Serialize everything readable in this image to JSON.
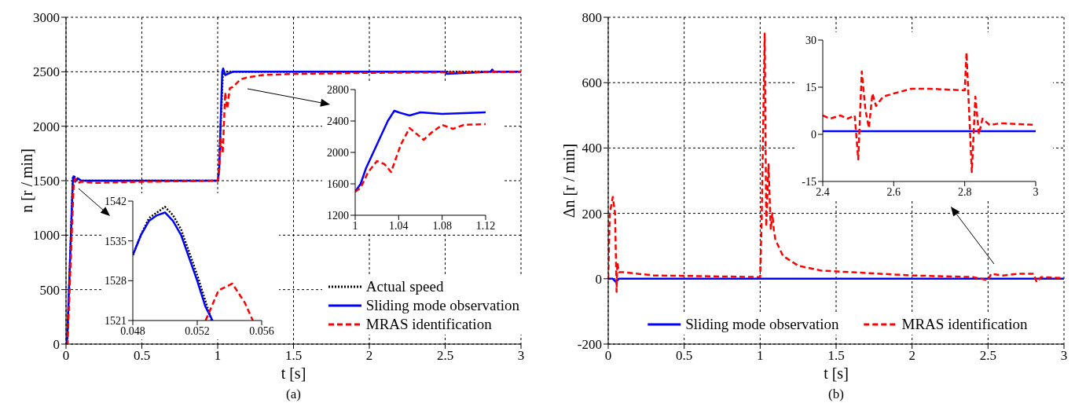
{
  "chart_data": [
    {
      "type": "line",
      "title": "(a)",
      "xlabel": "t [s]",
      "ylabel": "n [r / min]",
      "xlim": [
        0,
        3
      ],
      "ylim": [
        0,
        3000
      ],
      "xticks": [
        0,
        0.5,
        1,
        1.5,
        2,
        2.5,
        3
      ],
      "yticks": [
        0,
        500,
        1000,
        1500,
        2000,
        2500,
        3000
      ],
      "grid": true,
      "legend": "bottom right",
      "series": [
        {
          "name": "Actual speed",
          "color": "#000000",
          "line_style": "dotted",
          "x": [
            0,
            0.008,
            0.045,
            0.05,
            0.1,
            1,
            1.004,
            1.035,
            1.04,
            3
          ],
          "values": [
            0,
            0,
            1530,
            1540,
            1500,
            1500,
            1500,
            2500,
            2500,
            2500
          ]
        },
        {
          "name": "Sliding mode observation",
          "color": "#0000ff",
          "line_style": "solid",
          "x": [
            0,
            0.008,
            0.045,
            0.05,
            0.06,
            0.08,
            0.1,
            1,
            1.01,
            1.03,
            1.036,
            1.05,
            1.1,
            2.5,
            2.51,
            2.8,
            2.81,
            2.82,
            3
          ],
          "values": [
            0,
            50,
            1500,
            1540,
            1490,
            1520,
            1500,
            1500,
            1600,
            2500,
            2530,
            2470,
            2500,
            2500,
            2480,
            2500,
            2520,
            2500,
            2500
          ]
        },
        {
          "name": "MRAS identification",
          "color": "#ff0000",
          "line_style": "dashed",
          "x": [
            0,
            0.01,
            0.05,
            0.06,
            0.08,
            0.1,
            0.2,
            0.5,
            1,
            1.01,
            1.02,
            1.033,
            1.05,
            1.063,
            1.08,
            1.1,
            1.15,
            1.2,
            1.3,
            1.5,
            2,
            2.5,
            3
          ],
          "values": [
            0,
            0,
            1450,
            1520,
            1480,
            1490,
            1480,
            1490,
            1500,
            1600,
            1890,
            1750,
            2310,
            2160,
            2350,
            2360,
            2430,
            2450,
            2470,
            2480,
            2490,
            2495,
            2500
          ]
        }
      ]
    },
    {
      "type": "line",
      "xlim": [
        0.048,
        0.056
      ],
      "ylim": [
        1521,
        1542
      ],
      "xticks": [
        0.048,
        0.052,
        0.056
      ],
      "yticks": [
        1521,
        1528,
        1535,
        1542
      ],
      "series": [
        {
          "color": "#000000",
          "line_style": "dotted",
          "x": [
            0.048,
            0.0485,
            0.049,
            0.0495,
            0.05,
            0.0505,
            0.051,
            0.0515,
            0.052,
            0.0525,
            0.0529
          ],
          "values": [
            1532.5,
            1536,
            1539,
            1540,
            1541,
            1539.5,
            1537,
            1533,
            1529,
            1524.5,
            1521
          ]
        },
        {
          "color": "#0000ff",
          "line_style": "solid",
          "x": [
            0.048,
            0.0485,
            0.049,
            0.0495,
            0.05,
            0.0505,
            0.051,
            0.0515,
            0.052,
            0.0525,
            0.05295
          ],
          "values": [
            1532.5,
            1536,
            1538.5,
            1539.5,
            1540,
            1538.5,
            1536,
            1532,
            1528,
            1523.5,
            1521
          ]
        },
        {
          "color": "#ff0000",
          "line_style": "dashed",
          "x": [
            0.05252,
            0.05332,
            0.05418,
            0.05496,
            0.05545
          ],
          "values": [
            1521,
            1526.3,
            1527.5,
            1524.1,
            1521
          ]
        }
      ]
    },
    {
      "type": "line",
      "xlim": [
        1,
        1.12
      ],
      "ylim": [
        1200,
        2800
      ],
      "xticks": [
        1,
        1.04,
        1.08,
        1.12
      ],
      "yticks": [
        1200,
        1600,
        2000,
        2400,
        2800
      ],
      "series": [
        {
          "color": "#0000ff",
          "line_style": "solid",
          "x": [
            1,
            1.005,
            1.01,
            1.02,
            1.03,
            1.036,
            1.04,
            1.05,
            1.06,
            1.08,
            1.1,
            1.12
          ],
          "values": [
            1500,
            1600,
            1800,
            2100,
            2400,
            2530,
            2510,
            2470,
            2510,
            2490,
            2500,
            2510
          ]
        },
        {
          "color": "#ff0000",
          "line_style": "dashed",
          "x": [
            1,
            1.005,
            1.012,
            1.02,
            1.027,
            1.033,
            1.042,
            1.05,
            1.057,
            1.063,
            1.07,
            1.08,
            1.09,
            1.1,
            1.12
          ],
          "values": [
            1500,
            1550,
            1750,
            1890,
            1850,
            1750,
            2100,
            2310,
            2230,
            2160,
            2250,
            2350,
            2300,
            2350,
            2360
          ]
        }
      ]
    },
    {
      "type": "line",
      "title": "(b)",
      "xlabel": "t [s]",
      "ylabel": "Δn [r / min]",
      "xlim": [
        0,
        3
      ],
      "ylim": [
        -200,
        800
      ],
      "xticks": [
        0,
        0.5,
        1,
        1.5,
        2,
        2.5,
        3
      ],
      "yticks": [
        -200,
        0,
        200,
        400,
        600,
        800
      ],
      "grid": true,
      "legend": "bottom",
      "series": [
        {
          "name": "Sliding mode observation",
          "color": "#0000ff",
          "line_style": "solid",
          "x": [
            0,
            0.03,
            0.05,
            0.07,
            3
          ],
          "values": [
            0,
            0,
            -10,
            0,
            0
          ]
        },
        {
          "name": "MRAS identification",
          "color": "#ff0000",
          "line_style": "dashed",
          "x": [
            0,
            0.01,
            0.03,
            0.045,
            0.055,
            0.06,
            0.07,
            0.1,
            0.3,
            0.6,
            1,
            1.01,
            1.03,
            1.04,
            1.055,
            1.07,
            1.08,
            1.09,
            1.1,
            1.15,
            1.25,
            1.4,
            1.6,
            2,
            2.4,
            2.5,
            2.52,
            2.6,
            2.7,
            2.8,
            2.82,
            2.85,
            3
          ],
          "values": [
            0,
            200,
            250,
            200,
            -40,
            50,
            20,
            20,
            10,
            8,
            5,
            180,
            750,
            160,
            350,
            150,
            200,
            150,
            120,
            70,
            40,
            25,
            20,
            10,
            5,
            -5,
            15,
            10,
            15,
            15,
            -10,
            5,
            2
          ]
        }
      ]
    },
    {
      "type": "line",
      "xlim": [
        2.4,
        3
      ],
      "ylim": [
        -15,
        30
      ],
      "xticks": [
        2.4,
        2.6,
        2.8,
        3
      ],
      "yticks": [
        -15,
        0,
        15,
        30
      ],
      "series": [
        {
          "color": "#0000ff",
          "line_style": "solid",
          "x": [
            2.4,
            3
          ],
          "values": [
            1,
            1
          ]
        },
        {
          "color": "#ff0000",
          "line_style": "dashed",
          "x": [
            2.4,
            2.42,
            2.45,
            2.47,
            2.49,
            2.5,
            2.51,
            2.52,
            2.53,
            2.54,
            2.55,
            2.57,
            2.6,
            2.65,
            2.7,
            2.8,
            2.805,
            2.82,
            2.83,
            2.84,
            2.85,
            2.87,
            2.9,
            3
          ],
          "values": [
            6,
            5,
            6,
            5,
            6,
            -8,
            20,
            8,
            2,
            13,
            9,
            12,
            13,
            14.5,
            14.5,
            14,
            26,
            -12,
            12,
            0,
            5,
            3,
            3.5,
            3
          ]
        }
      ]
    }
  ]
}
